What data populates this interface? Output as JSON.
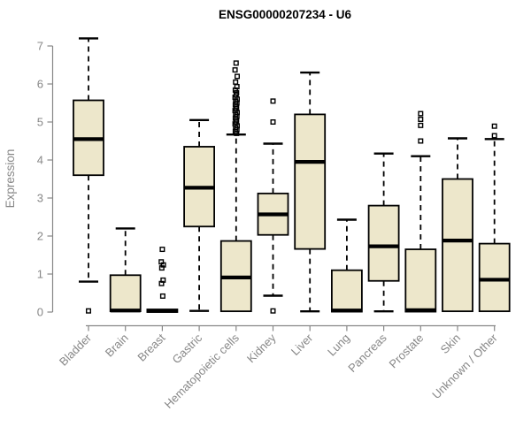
{
  "title": "ENSG00000207234 - U6",
  "chart_data": {
    "type": "boxplot",
    "title": "ENSG00000207234 - U6",
    "xlabel": "",
    "ylabel": "Expression",
    "ylim": [
      0,
      7
    ],
    "yticks": [
      0,
      1,
      2,
      3,
      4,
      5,
      6,
      7
    ],
    "grid": false,
    "legend": "none",
    "categories": [
      "Bladder",
      "Brain",
      "Breast",
      "Gastric",
      "Hematopoietic cells",
      "Kidney",
      "Liver",
      "Lung",
      "Pancreas",
      "Prostate",
      "Skin",
      "Unknown / Other"
    ],
    "series": [
      {
        "category": "Bladder",
        "whisker_low": 0.8,
        "q1": 3.6,
        "median": 4.55,
        "q3": 5.57,
        "whisker_high": 7.2,
        "outliers": [
          0.03
        ]
      },
      {
        "category": "Brain",
        "whisker_low": 0.02,
        "q1": 0.02,
        "median": 0.04,
        "q3": 0.97,
        "whisker_high": 2.2,
        "outliers": []
      },
      {
        "category": "Breast",
        "whisker_low": 0.0,
        "q1": 0.0,
        "median": 0.03,
        "q3": 0.07,
        "whisker_high": 0.1,
        "outliers": [
          1.65,
          1.32,
          1.24,
          1.16,
          0.84,
          0.75,
          0.42
        ]
      },
      {
        "category": "Gastric",
        "whisker_low": 0.03,
        "q1": 2.25,
        "median": 3.27,
        "q3": 4.35,
        "whisker_high": 5.05,
        "outliers": []
      },
      {
        "category": "Hematopoietic cells",
        "whisker_low": 0.0,
        "q1": 0.02,
        "median": 0.91,
        "q3": 1.87,
        "whisker_high": 4.67,
        "outliers": [
          6.55,
          6.37,
          6.2,
          6.05,
          5.93,
          5.84,
          5.77,
          5.71,
          5.65,
          5.6,
          5.55,
          5.5,
          5.45,
          5.4,
          5.35,
          5.3,
          5.25,
          5.2,
          5.15,
          5.1,
          5.05,
          5.0,
          4.95,
          4.9,
          4.85,
          4.8,
          4.75,
          4.7
        ]
      },
      {
        "category": "Kidney",
        "whisker_low": 0.43,
        "q1": 2.03,
        "median": 2.57,
        "q3": 3.12,
        "whisker_high": 4.43,
        "outliers": [
          5.55,
          5.0,
          0.03
        ]
      },
      {
        "category": "Liver",
        "whisker_low": 0.02,
        "q1": 1.66,
        "median": 3.95,
        "q3": 5.2,
        "whisker_high": 6.3,
        "outliers": []
      },
      {
        "category": "Lung",
        "whisker_low": 0.0,
        "q1": 0.01,
        "median": 0.04,
        "q3": 1.1,
        "whisker_high": 2.43,
        "outliers": []
      },
      {
        "category": "Pancreas",
        "whisker_low": 0.02,
        "q1": 0.82,
        "median": 1.73,
        "q3": 2.8,
        "whisker_high": 4.17,
        "outliers": []
      },
      {
        "category": "Prostate",
        "whisker_low": 0.0,
        "q1": 0.01,
        "median": 0.05,
        "q3": 1.65,
        "whisker_high": 4.1,
        "outliers": [
          5.22,
          5.07,
          4.91,
          4.5
        ]
      },
      {
        "category": "Skin",
        "whisker_low": 0.0,
        "q1": 0.02,
        "median": 1.88,
        "q3": 3.5,
        "whisker_high": 4.57,
        "outliers": []
      },
      {
        "category": "Unknown / Other",
        "whisker_low": 0.0,
        "q1": 0.02,
        "median": 0.85,
        "q3": 1.8,
        "whisker_high": 4.55,
        "outliers": [
          4.89,
          4.64
        ]
      }
    ],
    "colors": {
      "box_fill": "#EDE7CB",
      "box_border": "#000000",
      "median": "#000000",
      "whisker": "#000000",
      "outlier": "#000000",
      "axis": "#878787",
      "tick_label": "#878787",
      "title": "#000000",
      "background": "#FFFFFF"
    }
  }
}
